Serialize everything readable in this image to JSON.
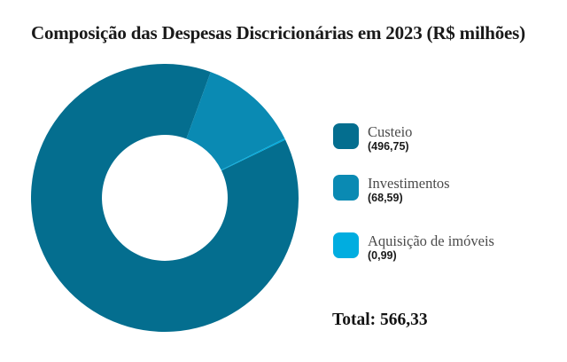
{
  "title": "Composição das Despesas Discricionárias em 2023 (R$ milhões)",
  "chart_data": {
    "type": "pie",
    "subtype": "donut",
    "title": "Composição das Despesas Discricionárias em 2023 (R$ milhões)",
    "categories": [
      "Custeio",
      "Investimentos",
      "Aquisição de imóveis"
    ],
    "values": [
      496.75,
      68.59,
      0.99
    ],
    "total": 566.33,
    "colors": [
      "#046e8f",
      "#0a8ab3",
      "#00ade0"
    ],
    "legend_position": "right",
    "start_angle_clockwise_from_top_deg": 64.3,
    "inner_radius_ratio": 0.47,
    "grid": false
  },
  "legend": {
    "items": [
      {
        "label": "Custeio",
        "value": "(496,75)",
        "color": "#046e8f"
      },
      {
        "label": "Investimentos",
        "value": "(68,59)",
        "color": "#0a8ab3"
      },
      {
        "label": "Aquisição de imóveis",
        "value": "(0,99)",
        "color": "#00ade0"
      }
    ]
  },
  "total": {
    "text": "Total: 566,33"
  }
}
